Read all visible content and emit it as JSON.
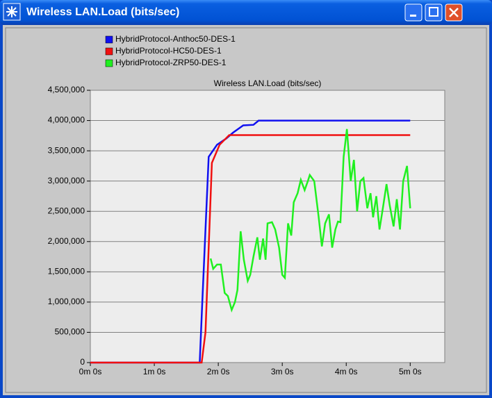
{
  "window": {
    "title": "Wireless LAN.Load (bits/sec)"
  },
  "chart_data": {
    "type": "line",
    "title": "Wireless LAN.Load (bits/sec)",
    "legend": "top-left",
    "grid": true,
    "xlim": [
      0,
      5.54
    ],
    "xticks": [
      {
        "value": 0,
        "label": "0m 0s"
      },
      {
        "value": 1,
        "label": "1m 0s"
      },
      {
        "value": 2,
        "label": "2m 0s"
      },
      {
        "value": 3,
        "label": "3m 0s"
      },
      {
        "value": 4,
        "label": "4m 0s"
      },
      {
        "value": 5,
        "label": "5m 0s"
      }
    ],
    "ylim": [
      0,
      4500000
    ],
    "yticks": [
      0,
      {
        "value": 500000,
        "label": "500,000"
      },
      {
        "value": 1000000,
        "label": "1,000,000"
      },
      {
        "value": 1500000,
        "label": "1,500,000"
      },
      {
        "value": 2000000,
        "label": "2,000,000"
      },
      {
        "value": 2500000,
        "label": "2,500,000"
      },
      {
        "value": 3000000,
        "label": "3,000,000"
      },
      {
        "value": 3500000,
        "label": "3,500,000"
      },
      {
        "value": 4000000,
        "label": "4,000,000"
      },
      {
        "value": 4500000,
        "label": "4,500,000"
      }
    ],
    "series": [
      {
        "name": "HybridProtocol-Anthoc50-DES-1",
        "color": "#1010f0",
        "x": [
          0,
          1.71,
          1.75,
          1.85,
          1.98,
          2.12,
          2.23,
          2.39,
          2.55,
          2.63,
          5.0
        ],
        "values": [
          0,
          0,
          1000000,
          3400000,
          3600000,
          3700000,
          3800000,
          3920000,
          3930000,
          4000000,
          4000000
        ]
      },
      {
        "name": "HybridProtocol-HC50-DES-1",
        "color": "#f01010",
        "x": [
          0,
          1.74,
          1.8,
          1.9,
          2.02,
          2.17,
          5.0
        ],
        "values": [
          0,
          0,
          500000,
          3300000,
          3600000,
          3760000,
          3760000
        ]
      },
      {
        "name": "HybridProtocol-ZRP50-DES-1",
        "color": "#20f020",
        "x": [
          1.88,
          1.92,
          1.98,
          2.04,
          2.1,
          2.15,
          2.21,
          2.26,
          2.3,
          2.35,
          2.4,
          2.46,
          2.5,
          2.55,
          2.61,
          2.65,
          2.7,
          2.74,
          2.77,
          2.84,
          2.89,
          2.95,
          3.0,
          3.04,
          3.09,
          3.14,
          3.18,
          3.24,
          3.29,
          3.35,
          3.4,
          3.43,
          3.5,
          3.57,
          3.62,
          3.67,
          3.73,
          3.78,
          3.83,
          3.87,
          3.91,
          3.96,
          4.01,
          4.07,
          4.12,
          4.17,
          4.22,
          4.27,
          4.33,
          4.38,
          4.42,
          4.47,
          4.52,
          4.58,
          4.63,
          4.68,
          4.74,
          4.79,
          4.84,
          4.89,
          4.95,
          5.0
        ],
        "values": [
          1720000,
          1550000,
          1620000,
          1620000,
          1150000,
          1100000,
          870000,
          1000000,
          1200000,
          2170000,
          1700000,
          1350000,
          1450000,
          1750000,
          2070000,
          1700000,
          2050000,
          1700000,
          2300000,
          2320000,
          2200000,
          1900000,
          1450000,
          1400000,
          2300000,
          2100000,
          2650000,
          2800000,
          3020000,
          2850000,
          3000000,
          3100000,
          3000000,
          2400000,
          1920000,
          2300000,
          2450000,
          1900000,
          2200000,
          2330000,
          2320000,
          3400000,
          3860000,
          3000000,
          3350000,
          2500000,
          3000000,
          3050000,
          2550000,
          2800000,
          2400000,
          2750000,
          2200000,
          2600000,
          2950000,
          2600000,
          2250000,
          2700000,
          2200000,
          3000000,
          3250000,
          2550000
        ]
      }
    ]
  }
}
